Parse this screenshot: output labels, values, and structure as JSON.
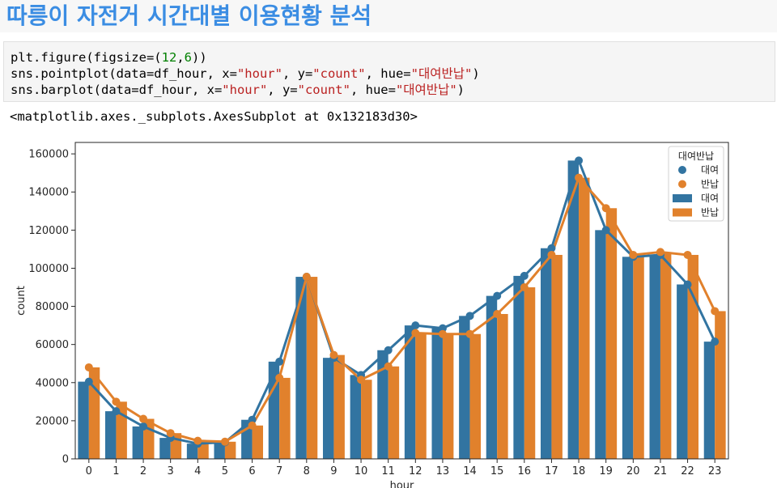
{
  "title": "따릉이 자전거 시간대별 이용현황 분석",
  "code": {
    "line1": [
      {
        "t": "plt.figure(figsize=(",
        "c": ""
      },
      {
        "t": "12",
        "c": "num"
      },
      {
        "t": ",",
        "c": ""
      },
      {
        "t": "6",
        "c": "num"
      },
      {
        "t": "))",
        "c": ""
      }
    ],
    "line2": [
      {
        "t": "sns.pointplot(data=df_hour, x=",
        "c": ""
      },
      {
        "t": "\"hour\"",
        "c": "str"
      },
      {
        "t": ", y=",
        "c": ""
      },
      {
        "t": "\"count\"",
        "c": "str"
      },
      {
        "t": ", hue=",
        "c": ""
      },
      {
        "t": "\"대여반납\"",
        "c": "str"
      },
      {
        "t": ")",
        "c": ""
      }
    ],
    "line3": [
      {
        "t": "sns.barplot(data=df_hour, x=",
        "c": ""
      },
      {
        "t": "\"hour\"",
        "c": "str"
      },
      {
        "t": ", y=",
        "c": ""
      },
      {
        "t": "\"count\"",
        "c": "str"
      },
      {
        "t": ", hue=",
        "c": ""
      },
      {
        "t": "\"대여반납\"",
        "c": "str"
      },
      {
        "t": ")",
        "c": ""
      }
    ]
  },
  "output_text": "<matplotlib.axes._subplots.AxesSubplot at 0x132183d30>",
  "chart_data": {
    "type": "bar",
    "xlabel": "hour",
    "ylabel": "count",
    "ylim": [
      0,
      166000
    ],
    "yticks": [
      0,
      20000,
      40000,
      60000,
      80000,
      100000,
      120000,
      140000,
      160000
    ],
    "categories": [
      "0",
      "1",
      "2",
      "3",
      "4",
      "5",
      "6",
      "7",
      "8",
      "9",
      "10",
      "11",
      "12",
      "13",
      "14",
      "15",
      "16",
      "17",
      "18",
      "19",
      "20",
      "21",
      "22",
      "23"
    ],
    "legend_title": "대여반납",
    "legend_position": "top-right",
    "colors": {
      "rent": "#3274a1",
      "return": "#e1812c"
    },
    "series": [
      {
        "name": "대여",
        "values": [
          40500,
          25000,
          17000,
          11000,
          8000,
          8700,
          20500,
          51000,
          95500,
          53000,
          44000,
          57000,
          70000,
          68500,
          75000,
          85500,
          96000,
          110500,
          156500,
          120000,
          106000,
          107000,
          91500,
          61500
        ]
      },
      {
        "name": "반납",
        "values": [
          48000,
          30000,
          21000,
          13500,
          9500,
          9000,
          17500,
          42500,
          95500,
          54500,
          41500,
          48500,
          66000,
          65500,
          65500,
          76000,
          90000,
          107000,
          147500,
          131500,
          107000,
          108500,
          107000,
          77500
        ]
      }
    ]
  }
}
